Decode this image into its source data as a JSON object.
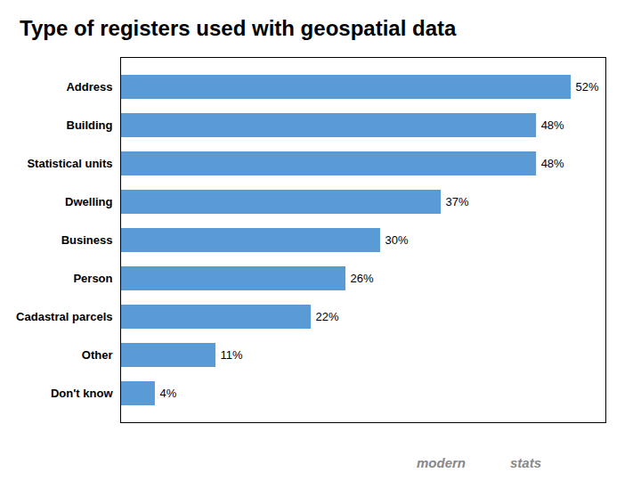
{
  "chart_data": {
    "type": "bar",
    "orientation": "horizontal",
    "title": "Type of registers used with geospatial data",
    "categories": [
      "Don't know",
      "Other",
      "Cadastral parcels",
      "Person",
      "Business",
      "Dwelling",
      "Statistical units",
      "Building",
      "Address"
    ],
    "values": [
      4,
      11,
      22,
      26,
      30,
      37,
      48,
      48,
      52
    ],
    "value_labels": [
      "4%",
      "11%",
      "22%",
      "26%",
      "30%",
      "37%",
      "48%",
      "48%",
      "52%"
    ],
    "data_labels": true,
    "color": "#5B9BD5",
    "xlim": [
      0,
      56
    ],
    "tick_labels": "y",
    "grid": false,
    "annotations": [
      "modern",
      "stats"
    ]
  }
}
